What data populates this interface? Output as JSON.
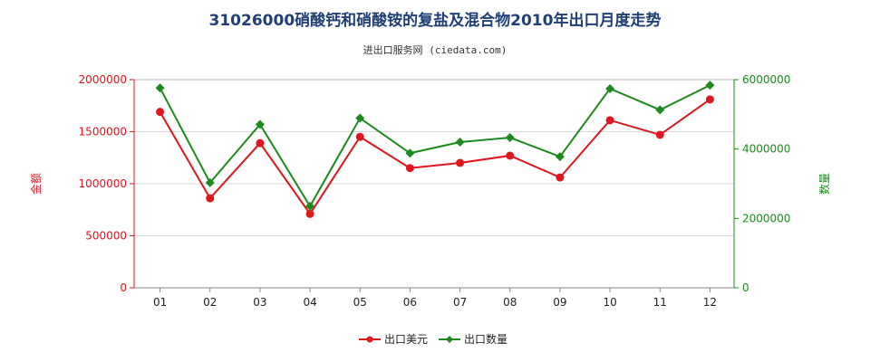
{
  "chart_data": {
    "type": "line",
    "title": "31026000硝酸钙和硝酸铵的复盐及混合物2010年出口月度走势",
    "subtitle": "进出口服务网 (ciedata.com)",
    "categories": [
      "01",
      "02",
      "03",
      "04",
      "05",
      "06",
      "07",
      "08",
      "09",
      "10",
      "11",
      "12"
    ],
    "y_left": {
      "label": "金额",
      "ylim": [
        0,
        2000000
      ],
      "ticks": [
        0,
        500000,
        1000000,
        1500000,
        2000000
      ],
      "color": "#e0161e"
    },
    "y_right": {
      "label": "数量",
      "ylim": [
        0,
        6000000
      ],
      "ticks": [
        0,
        2000000,
        4000000,
        6000000
      ],
      "color": "#1d8a1d"
    },
    "grid": true,
    "legend_position": "bottom",
    "series": [
      {
        "name": "出口美元",
        "axis": "left",
        "color": "#e0161e",
        "marker": "circle",
        "values": [
          1690000,
          860000,
          1390000,
          710000,
          1450000,
          1150000,
          1200000,
          1270000,
          1060000,
          1610000,
          1470000,
          1810000
        ]
      },
      {
        "name": "出口数量",
        "axis": "right",
        "color": "#1d8a1d",
        "marker": "diamond",
        "values": [
          5760000,
          3030000,
          4710000,
          2350000,
          4890000,
          3880000,
          4200000,
          4330000,
          3780000,
          5740000,
          5130000,
          5840000
        ]
      }
    ]
  }
}
